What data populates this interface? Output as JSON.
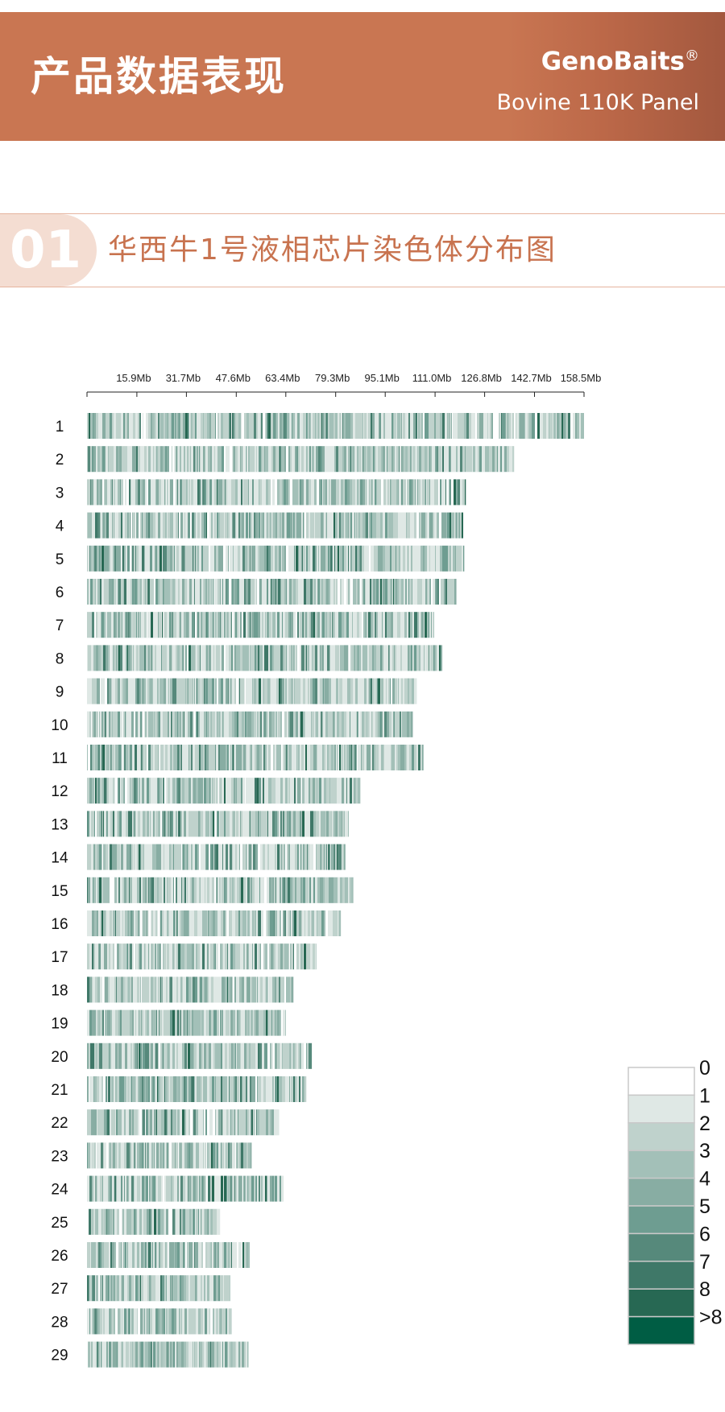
{
  "header": {
    "title": "产品数据表现",
    "brand": "GenoBaits",
    "brand_mark": "®",
    "subtitle": "Bovine 110K Panel"
  },
  "section": {
    "number": "01",
    "title": "华西牛1号液相芯片染色体分布图"
  },
  "chart_data": {
    "type": "heatmap",
    "title": "华西牛1号液相芯片染色体分布图",
    "xlabel": "",
    "ylabel": "",
    "x_unit": "Mb",
    "xlim": [
      0,
      158.5
    ],
    "x_ticks": [
      15.9,
      31.7,
      47.6,
      63.4,
      79.3,
      95.1,
      111.0,
      126.8,
      142.7,
      158.5
    ],
    "x_tick_labels": [
      "15.9Mb",
      "31.7Mb",
      "47.6Mb",
      "63.4Mb",
      "79.3Mb",
      "95.1Mb",
      "111.0Mb",
      "126.8Mb",
      "142.7Mb",
      "158.5Mb"
    ],
    "chromosomes": [
      {
        "name": "1",
        "length_mb": 158.5
      },
      {
        "name": "2",
        "length_mb": 136.2
      },
      {
        "name": "3",
        "length_mb": 121.0
      },
      {
        "name": "4",
        "length_mb": 120.0
      },
      {
        "name": "5",
        "length_mb": 120.3
      },
      {
        "name": "6",
        "length_mb": 117.8
      },
      {
        "name": "7",
        "length_mb": 110.7
      },
      {
        "name": "8",
        "length_mb": 113.3
      },
      {
        "name": "9",
        "length_mb": 105.1
      },
      {
        "name": "10",
        "length_mb": 103.9
      },
      {
        "name": "11",
        "length_mb": 107.3
      },
      {
        "name": "12",
        "length_mb": 87.3
      },
      {
        "name": "13",
        "length_mb": 83.5
      },
      {
        "name": "14",
        "length_mb": 82.4
      },
      {
        "name": "15",
        "length_mb": 85.0
      },
      {
        "name": "16",
        "length_mb": 81.0
      },
      {
        "name": "17",
        "length_mb": 73.2
      },
      {
        "name": "18",
        "length_mb": 66.0
      },
      {
        "name": "19",
        "length_mb": 63.4
      },
      {
        "name": "20",
        "length_mb": 71.8
      },
      {
        "name": "21",
        "length_mb": 70.0
      },
      {
        "name": "22",
        "length_mb": 61.2
      },
      {
        "name": "23",
        "length_mb": 52.5
      },
      {
        "name": "24",
        "length_mb": 62.7
      },
      {
        "name": "25",
        "length_mb": 42.4
      },
      {
        "name": "26",
        "length_mb": 51.9
      },
      {
        "name": "27",
        "length_mb": 45.6
      },
      {
        "name": "28",
        "length_mb": 46.1
      },
      {
        "name": "29",
        "length_mb": 51.5
      }
    ],
    "legend": {
      "labels": [
        "0",
        "1",
        "2",
        "3",
        "4",
        "5",
        "6",
        "7",
        "8",
        ">8"
      ],
      "colors": [
        "#ffffff",
        "#dfe8e5",
        "#bfd2cc",
        "#a3c0b8",
        "#88ada3",
        "#6e9d91",
        "#56897b",
        "#3f7868",
        "#276853",
        "#005d44"
      ]
    }
  }
}
